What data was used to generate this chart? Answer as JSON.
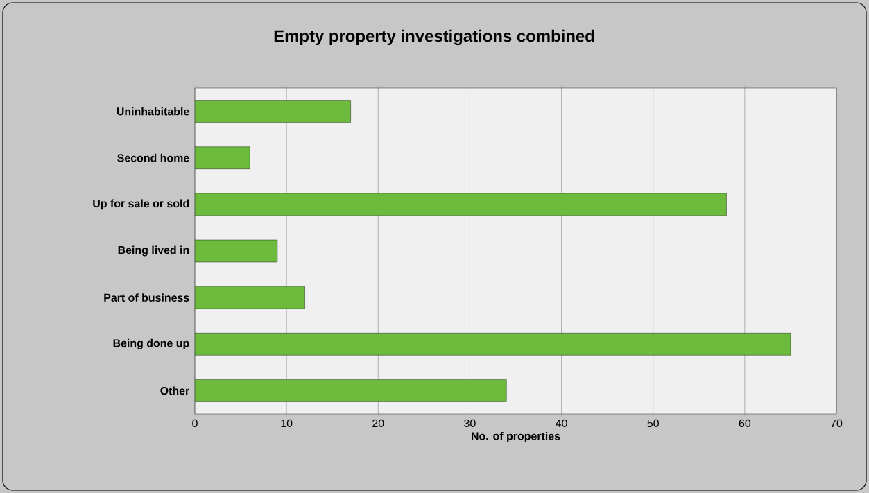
{
  "chart_data": {
    "type": "bar",
    "orientation": "horizontal",
    "title": "Empty property investigations combined",
    "xlabel": "No. of properties",
    "categories": [
      "Uninhabitable",
      "Second home",
      "Up for sale or sold",
      "Being lived in",
      "Part of business",
      "Being done up",
      "Other"
    ],
    "values": [
      17,
      6,
      58,
      9,
      12,
      65,
      34
    ],
    "color": "#6cbb3c",
    "xlim": [
      0,
      70
    ],
    "xticks": [
      0,
      10,
      20,
      30,
      40,
      50,
      60,
      70
    ],
    "grid": "x"
  }
}
